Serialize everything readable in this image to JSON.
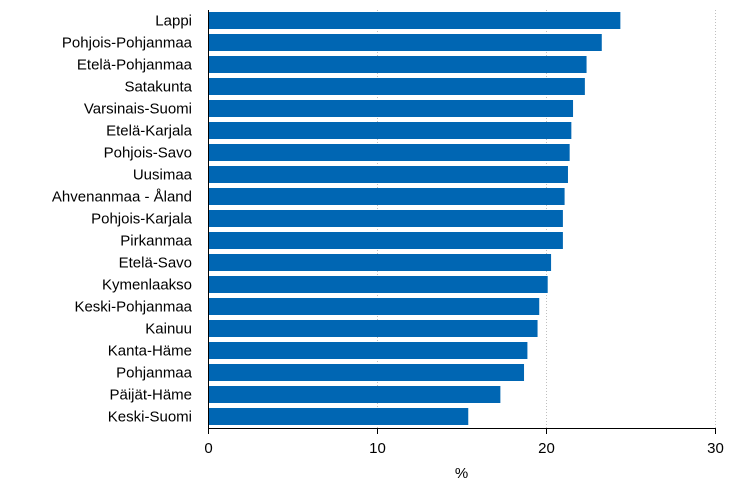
{
  "chart_data": {
    "type": "bar",
    "orientation": "horizontal",
    "title": "",
    "xlabel": "%",
    "ylabel": "",
    "categories": [
      "Lappi",
      "Pohjois-Pohjanmaa",
      "Etelä-Pohjanmaa",
      "Satakunta",
      "Varsinais-Suomi",
      "Etelä-Karjala",
      "Pohjois-Savo",
      "Uusimaa",
      "Ahvenanmaa - Åland",
      "Pohjois-Karjala",
      "Pirkanmaa",
      "Etelä-Savo",
      "Kymenlaakso",
      "Keski-Pohjanmaa",
      "Kainuu",
      "Kanta-Häme",
      "Pohjanmaa",
      "Päijät-Häme",
      "Keski-Suomi"
    ],
    "values": [
      24.4,
      23.3,
      22.4,
      22.3,
      21.6,
      21.5,
      21.4,
      21.3,
      21.1,
      21.0,
      21.0,
      20.3,
      20.1,
      19.6,
      19.5,
      18.9,
      18.7,
      17.3,
      15.4
    ],
    "xlim": [
      0,
      30
    ],
    "xticks": [
      0,
      10,
      20,
      30
    ],
    "tick_labels": [
      "0",
      "10",
      "20",
      "30"
    ],
    "gridlines": "vertical-dotted",
    "bar_color": "#0066b3",
    "grid_color": "#bfbfbf",
    "axis_color": "#000000"
  }
}
